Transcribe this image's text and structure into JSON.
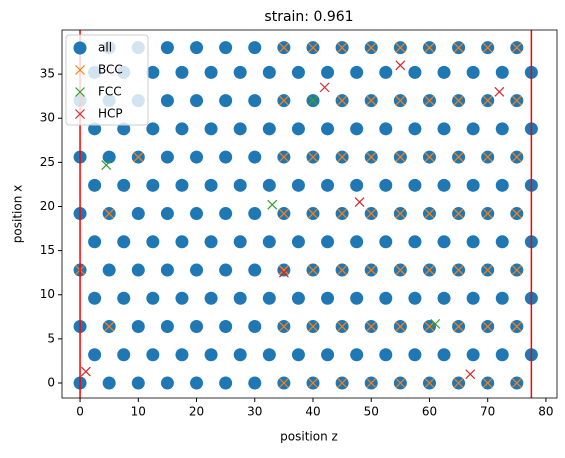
{
  "chart_data": {
    "type": "scatter",
    "title": "strain: 0.961",
    "x_label": "position z",
    "y_label": "position x",
    "xlim": [
      -3.1,
      81.9
    ],
    "ylim": [
      -1.7,
      40
    ],
    "xticks": [
      0,
      10,
      20,
      30,
      40,
      50,
      60,
      70,
      80
    ],
    "yticks": [
      0,
      5,
      10,
      15,
      20,
      25,
      30,
      35
    ],
    "grid": false,
    "legend": "upper left",
    "vlines": {
      "color": "#ff0000",
      "values": [
        0,
        77.5
      ]
    },
    "series": [
      {
        "name": "all",
        "color": "#1f77b4",
        "marker": "o",
        "x": [
          0,
          5,
          10,
          15,
          20,
          25,
          30,
          35,
          40,
          45,
          50,
          55,
          60,
          65,
          70,
          75,
          2.5,
          7.5,
          12.5,
          17.5,
          22.5,
          27.5,
          32.5,
          37.5,
          42.5,
          47.5,
          52.5,
          57.5,
          62.5,
          67.5,
          72.5,
          77.5,
          0,
          5,
          10,
          15,
          20,
          25,
          30,
          35,
          40,
          45,
          50,
          55,
          60,
          65,
          70,
          75,
          2.5,
          7.5,
          12.5,
          17.5,
          22.5,
          27.5,
          32.5,
          37.5,
          42.5,
          47.5,
          52.5,
          57.5,
          62.5,
          67.5,
          72.5,
          77.5,
          0,
          5,
          10,
          15,
          20,
          25,
          30,
          35,
          40,
          45,
          50,
          55,
          60,
          65,
          70,
          75,
          2.5,
          7.5,
          12.5,
          17.5,
          22.5,
          27.5,
          32.5,
          37.5,
          42.5,
          47.5,
          52.5,
          57.5,
          62.5,
          67.5,
          72.5,
          77.5,
          0,
          5,
          10,
          15,
          20,
          25,
          30,
          35,
          40,
          45,
          50,
          55,
          60,
          65,
          70,
          75,
          2.5,
          7.5,
          12.5,
          17.5,
          22.5,
          27.5,
          32.5,
          37.5,
          42.5,
          47.5,
          52.5,
          57.5,
          62.5,
          67.5,
          72.5,
          77.5,
          0,
          5,
          10,
          15,
          20,
          25,
          30,
          35,
          40,
          45,
          50,
          55,
          60,
          65,
          70,
          75,
          2.5,
          7.5,
          12.5,
          17.5,
          22.5,
          27.5,
          32.5,
          37.5,
          42.5,
          47.5,
          52.5,
          57.5,
          62.5,
          67.5,
          72.5,
          77.5,
          0,
          5,
          10,
          15,
          20,
          25,
          30,
          35,
          40,
          45,
          50,
          55,
          60,
          65,
          70,
          75,
          2.5,
          7.5,
          12.5,
          17.5,
          22.5,
          27.5,
          32.5,
          37.5,
          42.5,
          47.5,
          52.5,
          57.5,
          62.5,
          67.5,
          72.5,
          77.5,
          0,
          5,
          10,
          15,
          20,
          25,
          30,
          35,
          40,
          45,
          50,
          55,
          60,
          65,
          70,
          75
        ],
        "values": [
          0,
          0,
          0,
          0,
          0,
          0,
          0,
          0,
          0,
          0,
          0,
          0,
          0,
          0,
          0,
          0,
          3.2,
          3.2,
          3.2,
          3.2,
          3.2,
          3.2,
          3.2,
          3.2,
          3.2,
          3.2,
          3.2,
          3.2,
          3.2,
          3.2,
          3.2,
          3.2,
          6.4,
          6.4,
          6.4,
          6.4,
          6.4,
          6.4,
          6.4,
          6.4,
          6.4,
          6.4,
          6.4,
          6.4,
          6.4,
          6.4,
          6.4,
          6.4,
          9.6,
          9.6,
          9.6,
          9.6,
          9.6,
          9.6,
          9.6,
          9.6,
          9.6,
          9.6,
          9.6,
          9.6,
          9.6,
          9.6,
          9.6,
          9.6,
          12.8,
          12.8,
          12.8,
          12.8,
          12.8,
          12.8,
          12.8,
          12.8,
          12.8,
          12.8,
          12.8,
          12.8,
          12.8,
          12.8,
          12.8,
          12.8,
          16,
          16,
          16,
          16,
          16,
          16,
          16,
          16,
          16,
          16,
          16,
          16,
          16,
          16,
          16,
          16,
          19.2,
          19.2,
          19.2,
          19.2,
          19.2,
          19.2,
          19.2,
          19.2,
          19.2,
          19.2,
          19.2,
          19.2,
          19.2,
          19.2,
          19.2,
          19.2,
          22.4,
          22.4,
          22.4,
          22.4,
          22.4,
          22.4,
          22.4,
          22.4,
          22.4,
          22.4,
          22.4,
          22.4,
          22.4,
          22.4,
          22.4,
          22.4,
          25.6,
          25.6,
          25.6,
          25.6,
          25.6,
          25.6,
          25.6,
          25.6,
          25.6,
          25.6,
          25.6,
          25.6,
          25.6,
          25.6,
          25.6,
          25.6,
          28.8,
          28.8,
          28.8,
          28.8,
          28.8,
          28.8,
          28.8,
          28.8,
          28.8,
          28.8,
          28.8,
          28.8,
          28.8,
          28.8,
          28.8,
          28.8,
          32,
          32,
          32,
          32,
          32,
          32,
          32,
          32,
          32,
          32,
          32,
          32,
          32,
          32,
          32,
          32,
          35.2,
          35.2,
          35.2,
          35.2,
          35.2,
          35.2,
          35.2,
          35.2,
          35.2,
          35.2,
          35.2,
          35.2,
          35.2,
          35.2,
          35.2,
          35.2,
          38,
          38,
          38,
          38,
          38,
          38,
          38,
          38,
          38,
          38,
          38,
          38,
          38,
          38,
          38,
          38
        ]
      },
      {
        "name": "BCC",
        "color": "#ff7f0e",
        "marker": "x",
        "x": [
          35,
          40,
          45,
          50,
          55,
          60,
          65,
          70,
          75,
          35,
          40,
          45,
          50,
          55,
          60,
          65,
          70,
          75,
          35,
          40,
          45,
          50,
          55,
          60,
          65,
          70,
          75,
          35,
          40,
          45,
          50,
          55,
          60,
          65,
          70,
          75,
          35,
          40,
          45,
          50,
          55,
          60,
          65,
          70,
          75,
          35,
          40,
          45,
          50,
          55,
          60,
          65,
          70,
          75,
          35,
          40,
          45,
          50,
          55,
          60,
          65,
          70,
          75,
          5,
          5,
          0,
          10
        ],
        "values": [
          0,
          0,
          0,
          0,
          0,
          0,
          0,
          0,
          0,
          6.4,
          6.4,
          6.4,
          6.4,
          6.4,
          6.4,
          6.4,
          6.4,
          6.4,
          12.8,
          12.8,
          12.8,
          12.8,
          12.8,
          12.8,
          12.8,
          12.8,
          12.8,
          19.2,
          19.2,
          19.2,
          19.2,
          19.2,
          19.2,
          19.2,
          19.2,
          19.2,
          25.6,
          25.6,
          25.6,
          25.6,
          25.6,
          25.6,
          25.6,
          25.6,
          25.6,
          32,
          32,
          32,
          32,
          32,
          32,
          32,
          32,
          32,
          38,
          38,
          38,
          38,
          38,
          38,
          38,
          38,
          38,
          6.4,
          19.2,
          12.8,
          25.6
        ]
      },
      {
        "name": "FCC",
        "color": "#2ca02c",
        "marker": "x",
        "x": [
          4.5,
          33,
          40,
          61
        ],
        "values": [
          24.7,
          20.2,
          32,
          6.7
        ]
      },
      {
        "name": "HCP",
        "color": "#d62728",
        "marker": "x",
        "x": [
          1,
          42,
          55,
          67,
          48,
          35,
          72
        ],
        "values": [
          1.3,
          33.5,
          36,
          1,
          20.5,
          12.5,
          33
        ]
      }
    ]
  }
}
